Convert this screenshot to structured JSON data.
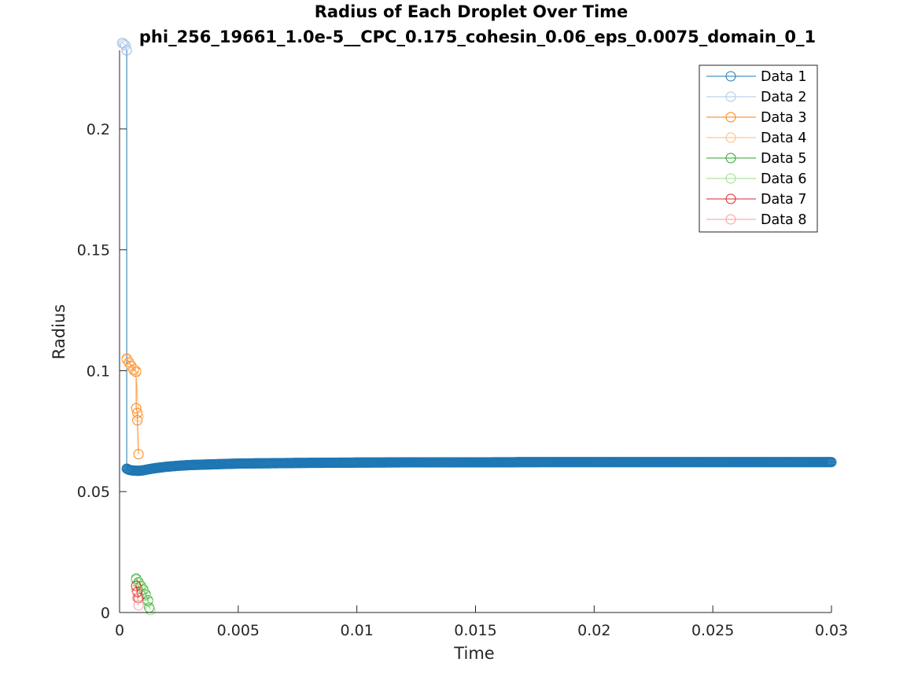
{
  "chart_data": {
    "type": "line",
    "title": "Radius of Each Droplet Over Time",
    "subtitle": "phi_256_19661_1.0e-5__CPC_0.175_cohesin_0.06_eps_0.0075_domain_0_1",
    "xlabel": "Time",
    "ylabel": "Radius",
    "xlim": [
      0,
      0.03
    ],
    "ylim": [
      0,
      0.2325
    ],
    "xticks": [
      0,
      0.005,
      0.01,
      0.015,
      0.02,
      0.025,
      0.03
    ],
    "xtick_labels": [
      "0",
      "0.005",
      "0.01",
      "0.015",
      "0.02",
      "0.025",
      "0.03"
    ],
    "yticks": [
      0,
      0.05,
      0.1,
      0.15,
      0.2
    ],
    "ytick_labels": [
      "0",
      "0.05",
      "0.1",
      "0.15",
      "0.2"
    ],
    "grid": false,
    "legend_position": "top-right",
    "marker": "circle-open",
    "series": [
      {
        "name": "Data 1",
        "color": "#1f77b4",
        "x": [
          0.0003,
          0.0003,
          0.0004,
          0.0005,
          0.0006,
          0.0008,
          0.001,
          0.0012,
          0.0015,
          0.002,
          0.0025,
          0.003,
          0.004,
          0.005,
          0.006,
          0.007,
          0.008,
          0.01,
          0.012,
          0.015,
          0.018,
          0.021,
          0.024,
          0.027,
          0.03
        ],
        "y": [
          0.2325,
          0.0595,
          0.059,
          0.0588,
          0.0587,
          0.0586,
          0.0588,
          0.0592,
          0.0597,
          0.0603,
          0.0607,
          0.061,
          0.0613,
          0.0616,
          0.0617,
          0.0618,
          0.0619,
          0.062,
          0.0621,
          0.0621,
          0.0622,
          0.0622,
          0.0622,
          0.0622,
          0.0622
        ]
      },
      {
        "name": "Data 2",
        "color": "#aec7e8",
        "x": [
          0.0001,
          0.00015,
          0.0002,
          0.00025,
          0.0003
        ],
        "y": [
          0.2355,
          0.2355,
          0.235,
          0.2345,
          0.2325
        ]
      },
      {
        "name": "Data 3",
        "color": "#ff7f0e",
        "x": [
          0.0003,
          0.0004,
          0.0005,
          0.0006,
          0.0007,
          0.0007,
          0.00075,
          0.00075,
          0.0008
        ],
        "y": [
          0.105,
          0.1035,
          0.102,
          0.1005,
          0.0995,
          0.0845,
          0.0825,
          0.0795,
          0.0655
        ]
      },
      {
        "name": "Data 4",
        "color": "#ffbb78",
        "x": [
          0.0003,
          0.0004,
          0.0005,
          0.0006,
          0.0007,
          0.0008
        ],
        "y": [
          0.1045,
          0.103,
          0.1015,
          0.1,
          0.1,
          0.081
        ]
      },
      {
        "name": "Data 5",
        "color": "#2ca02c",
        "x": [
          0.0007,
          0.0008,
          0.0009,
          0.001,
          0.0011,
          0.0012,
          0.00125
        ],
        "y": [
          0.014,
          0.0125,
          0.011,
          0.0095,
          0.0075,
          0.005,
          0.002
        ]
      },
      {
        "name": "Data 6",
        "color": "#98df8a",
        "x": [
          0.0007,
          0.0008,
          0.0009,
          0.001,
          0.0011,
          0.0012,
          0.0013
        ],
        "y": [
          0.0135,
          0.012,
          0.0105,
          0.009,
          0.007,
          0.0045,
          0.001
        ]
      },
      {
        "name": "Data 7",
        "color": "#d62728",
        "x": [
          0.0007,
          0.00075,
          0.0008
        ],
        "y": [
          0.011,
          0.0085,
          0.006
        ]
      },
      {
        "name": "Data 8",
        "color": "#ff9896",
        "x": [
          0.0007,
          0.00075,
          0.0008
        ],
        "y": [
          0.0095,
          0.006,
          0.003
        ]
      }
    ]
  }
}
